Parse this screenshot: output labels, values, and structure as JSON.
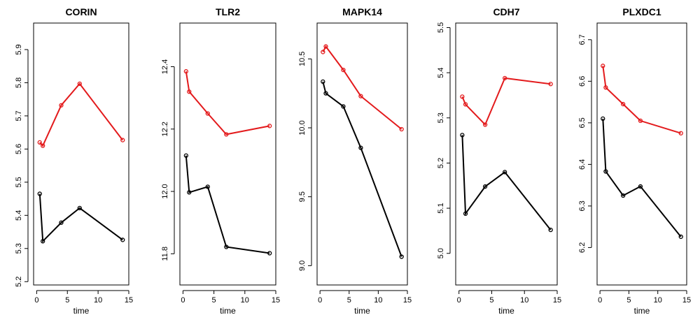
{
  "chart_data": [
    {
      "type": "line",
      "title": "CORIN",
      "xlabel": "time",
      "ylabel": "",
      "xlim": [
        -0.5,
        15
      ],
      "ylim": [
        5.19,
        5.98
      ],
      "xticks": [
        0,
        5,
        10,
        15
      ],
      "yticks": [
        5.2,
        5.3,
        5.4,
        5.5,
        5.6,
        5.7,
        5.8,
        5.9
      ],
      "series": [
        {
          "color": "#e31a1c",
          "x": [
            0.5,
            1,
            4,
            7,
            14
          ],
          "y": [
            5.62,
            5.61,
            5.732,
            5.797,
            5.627
          ]
        },
        {
          "color": "#000000",
          "x": [
            0.5,
            1,
            4,
            7,
            14
          ],
          "y": [
            5.465,
            5.322,
            5.378,
            5.422,
            5.326
          ]
        }
      ]
    },
    {
      "type": "line",
      "title": "TLR2",
      "xlabel": "time",
      "ylabel": "",
      "xlim": [
        -0.5,
        15
      ],
      "ylim": [
        11.7,
        12.54
      ],
      "xticks": [
        0,
        5,
        10,
        15
      ],
      "yticks": [
        11.8,
        12.0,
        12.2,
        12.4
      ],
      "series": [
        {
          "color": "#e31a1c",
          "x": [
            0.5,
            1,
            4,
            7,
            14
          ],
          "y": [
            12.385,
            12.32,
            12.25,
            12.183,
            12.21
          ]
        },
        {
          "color": "#000000",
          "x": [
            0.5,
            1,
            4,
            7,
            14
          ],
          "y": [
            12.115,
            11.997,
            12.015,
            11.822,
            11.802
          ]
        }
      ]
    },
    {
      "type": "line",
      "title": "MAPK14",
      "xlabel": "time",
      "ylabel": "",
      "xlim": [
        -0.5,
        15
      ],
      "ylim": [
        8.86,
        10.76
      ],
      "xticks": [
        0,
        5,
        10,
        15
      ],
      "yticks": [
        9.0,
        9.5,
        10.0,
        10.5
      ],
      "series": [
        {
          "color": "#e31a1c",
          "x": [
            0.5,
            1,
            4,
            7,
            14
          ],
          "y": [
            10.55,
            10.59,
            10.42,
            10.23,
            9.99
          ]
        },
        {
          "color": "#000000",
          "x": [
            0.5,
            1,
            4,
            7,
            14
          ],
          "y": [
            10.335,
            10.25,
            10.155,
            9.855,
            9.065
          ]
        }
      ]
    },
    {
      "type": "line",
      "title": "CDH7",
      "xlabel": "time",
      "ylabel": "",
      "xlim": [
        -0.5,
        15
      ],
      "ylim": [
        4.93,
        5.51
      ],
      "xticks": [
        0,
        5,
        10,
        15
      ],
      "yticks": [
        5.0,
        5.1,
        5.2,
        5.3,
        5.4,
        5.5
      ],
      "series": [
        {
          "color": "#e31a1c",
          "x": [
            0.5,
            1,
            4,
            7,
            14
          ],
          "y": [
            5.347,
            5.33,
            5.285,
            5.388,
            5.375
          ]
        },
        {
          "color": "#000000",
          "x": [
            0.5,
            1,
            4,
            7,
            14
          ],
          "y": [
            5.262,
            5.088,
            5.148,
            5.18,
            5.052
          ]
        }
      ]
    },
    {
      "type": "line",
      "title": "PLXDC1",
      "xlabel": "time",
      "ylabel": "",
      "xlim": [
        -0.5,
        15
      ],
      "ylim": [
        6.11,
        6.74
      ],
      "xticks": [
        0,
        5,
        10,
        15
      ],
      "yticks": [
        6.2,
        6.3,
        6.4,
        6.5,
        6.6,
        6.7
      ],
      "series": [
        {
          "color": "#e31a1c",
          "x": [
            0.5,
            1,
            4,
            7,
            14
          ],
          "y": [
            6.637,
            6.585,
            6.545,
            6.505,
            6.475
          ]
        },
        {
          "color": "#000000",
          "x": [
            0.5,
            1,
            4,
            7,
            14
          ],
          "y": [
            6.51,
            6.383,
            6.325,
            6.347,
            6.226
          ]
        }
      ]
    }
  ]
}
